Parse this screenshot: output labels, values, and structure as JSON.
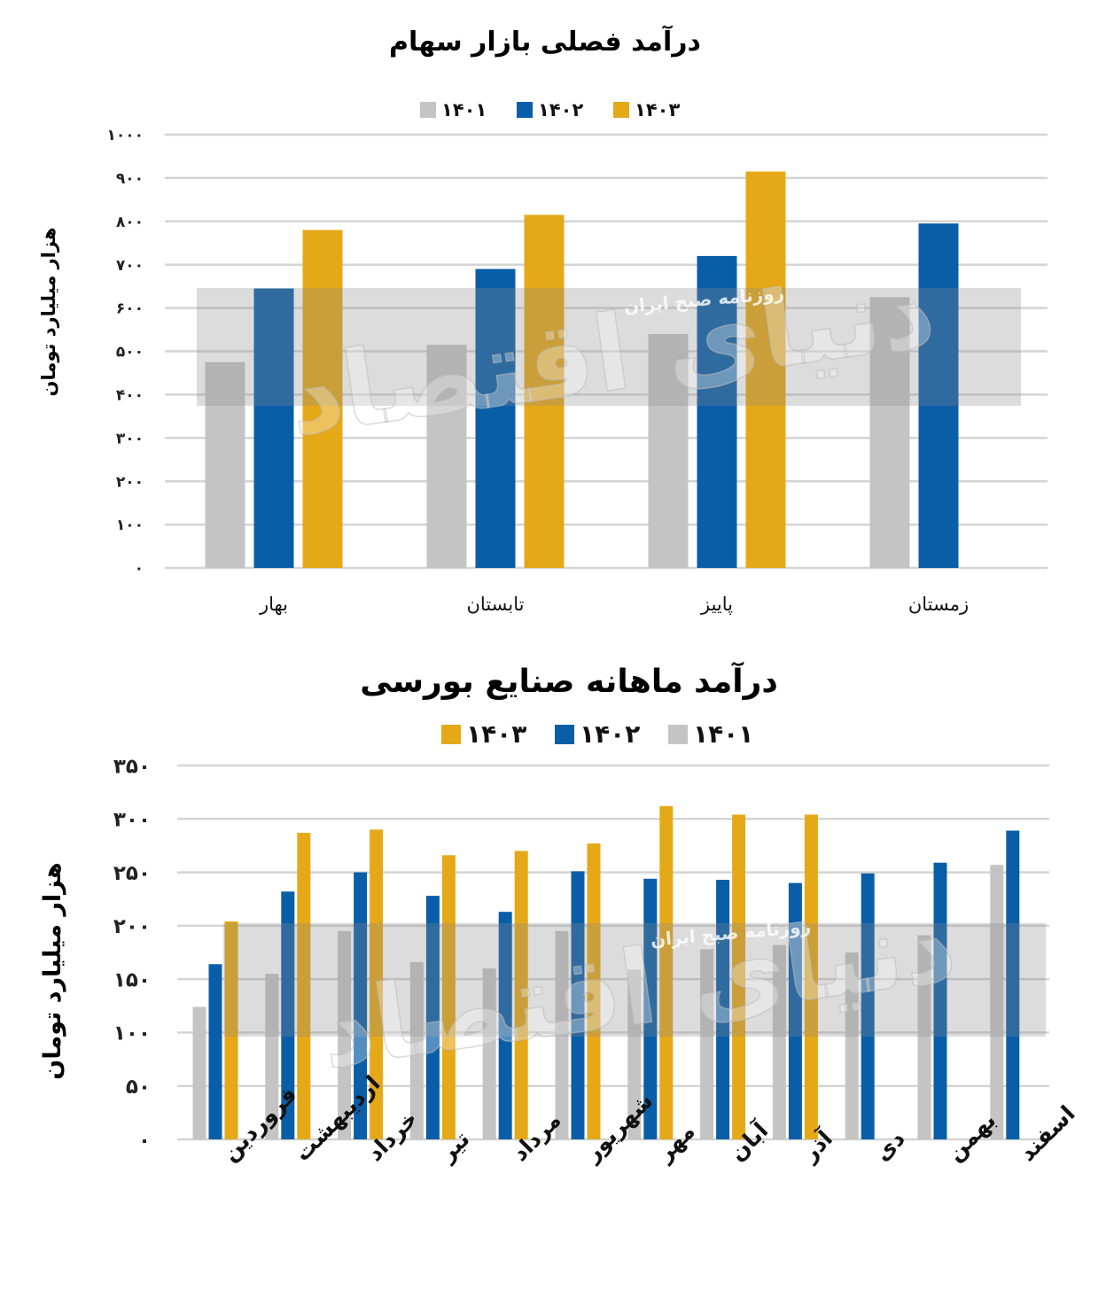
{
  "chart_data": [
    {
      "type": "bar",
      "title": "درآمد فصلی بازار سهام",
      "ylabel": "هزار میلیارد تومان",
      "xlabel": "",
      "ylim": [
        0,
        1000
      ],
      "yticks": [
        "۰",
        "۱۰۰",
        "۲۰۰",
        "۳۰۰",
        "۴۰۰",
        "۵۰۰",
        "۶۰۰",
        "۷۰۰",
        "۸۰۰",
        "۹۰۰",
        "۱۰۰۰"
      ],
      "categories": [
        "بهار",
        "تابستان",
        "پاییز",
        "زمستان"
      ],
      "legend_position": "top",
      "grid": true,
      "series": [
        {
          "name": "۱۴۰۱",
          "color": "#c4c4c4",
          "values": [
            475,
            515,
            540,
            625
          ]
        },
        {
          "name": "۱۴۰۲",
          "color": "#0a5ea8",
          "values": [
            645,
            690,
            720,
            795
          ]
        },
        {
          "name": "۱۴۰۳",
          "color": "#e5a817",
          "values": [
            780,
            815,
            915,
            null
          ]
        }
      ]
    },
    {
      "type": "bar",
      "title": "درآمد ماهانه صنایع بورسی",
      "ylabel": "هزار میلیارد تومان",
      "xlabel": "",
      "ylim": [
        0,
        350
      ],
      "yticks": [
        "۰",
        "۵۰",
        "۱۰۰",
        "۱۵۰",
        "۲۰۰",
        "۲۵۰",
        "۳۰۰",
        "۳۵۰"
      ],
      "categories": [
        "فروردین",
        "اردیبهشت",
        "خرداد",
        "تیر",
        "مرداد",
        "شهریور",
        "مهر",
        "آبان",
        "آذر",
        "دی",
        "بهمن",
        "اسفند"
      ],
      "legend_position": "top",
      "grid": true,
      "series": [
        {
          "name": "۱۴۰۱",
          "color": "#c4c4c4",
          "values": [
            124,
            155,
            195,
            166,
            160,
            195,
            159,
            178,
            182,
            175,
            191,
            257
          ]
        },
        {
          "name": "۱۴۰۲",
          "color": "#0a5ea8",
          "values": [
            164,
            232,
            250,
            228,
            213,
            251,
            244,
            243,
            240,
            249,
            259,
            289
          ]
        },
        {
          "name": "۱۴۰۳",
          "color": "#e5a817",
          "values": [
            204,
            287,
            290,
            266,
            270,
            277,
            312,
            304,
            304,
            null,
            null,
            null
          ]
        }
      ]
    }
  ],
  "watermark": {
    "logo_text": "دنیای اقتصاد",
    "subtitle": "روزنامه صبح ایران",
    "box_color": "#8c8c8c",
    "logo_color": "#ffffff"
  }
}
